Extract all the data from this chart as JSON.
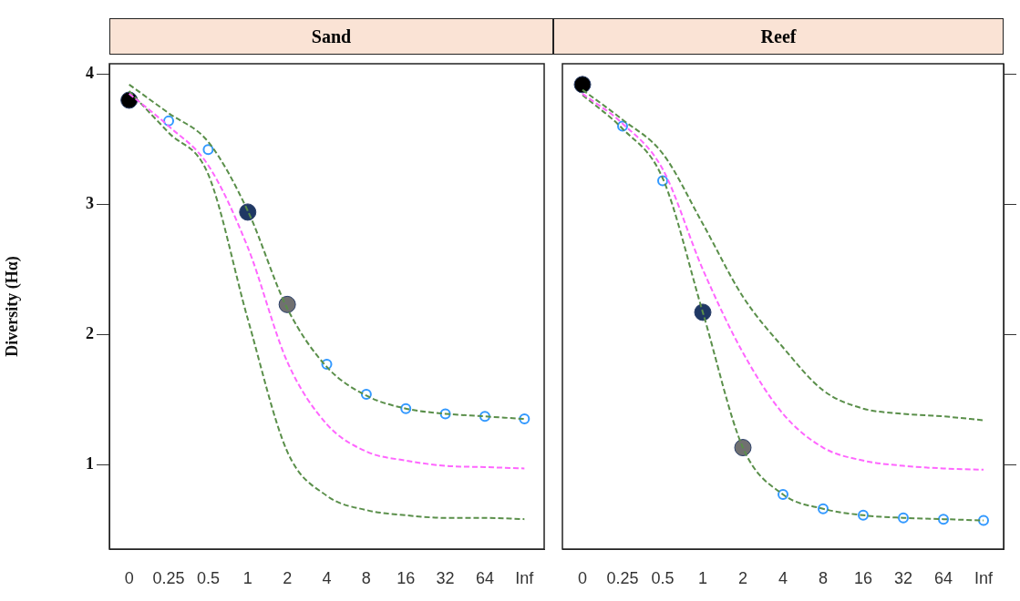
{
  "chart_data": [
    {
      "type": "line",
      "title": "Sand",
      "ylabel": "Diversity (Hα)",
      "categories": [
        "0",
        "0.25",
        "0.5",
        "1",
        "2",
        "4",
        "8",
        "16",
        "32",
        "64",
        "Inf"
      ],
      "ylim": [
        0.35,
        4.08
      ],
      "yticks": [
        1,
        2,
        3,
        4
      ],
      "series": [
        {
          "type": "line",
          "color": "#5a8f4a",
          "line_style": "dashed",
          "marker": "none",
          "values": [
            3.92,
            3.7,
            3.48,
            2.95,
            2.2,
            1.75,
            1.53,
            1.43,
            1.39,
            1.37,
            1.35
          ]
        },
        {
          "type": "line",
          "color": "#ff66ff",
          "line_style": "dashed",
          "marker": "none",
          "values": [
            3.85,
            3.6,
            3.3,
            2.67,
            1.79,
            1.31,
            1.1,
            1.03,
            0.99,
            0.98,
            0.97
          ]
        },
        {
          "type": "line",
          "color": "#5a8f4a",
          "line_style": "dashed",
          "marker": "none",
          "values": [
            3.87,
            3.55,
            3.23,
            2.12,
            1.1,
            0.76,
            0.65,
            0.61,
            0.59,
            0.59,
            0.58
          ]
        },
        {
          "type": "scatter",
          "marker": "circle",
          "colors": [
            "#000000",
            null,
            null,
            "#1f3864",
            "#707070",
            null,
            null,
            null,
            null,
            null,
            null
          ],
          "values": [
            3.8,
            null,
            null,
            2.94,
            2.23,
            null,
            null,
            null,
            null,
            null,
            null
          ]
        },
        {
          "type": "scatter",
          "marker": "circle",
          "color": "#3399ff",
          "values": [
            null,
            3.64,
            3.42,
            null,
            null,
            1.77,
            1.54,
            1.43,
            1.39,
            1.37,
            1.35
          ]
        }
      ]
    },
    {
      "type": "line",
      "title": "Reef",
      "tick_labels": "x",
      "categories": [
        "0",
        "0.25",
        "0.5",
        "1",
        "2",
        "4",
        "8",
        "16",
        "32",
        "64",
        "Inf"
      ],
      "ylim": [
        0.35,
        4.08
      ],
      "yticks": [
        1,
        2,
        3,
        4
      ],
      "series": [
        {
          "type": "line",
          "color": "#5a8f4a",
          "line_style": "dashed",
          "marker": "none",
          "values": [
            3.88,
            3.65,
            3.39,
            2.85,
            2.29,
            1.9,
            1.57,
            1.43,
            1.39,
            1.37,
            1.34
          ]
        },
        {
          "type": "line",
          "color": "#ff66ff",
          "line_style": "dashed",
          "marker": "none",
          "values": [
            3.85,
            3.62,
            3.27,
            2.5,
            1.86,
            1.39,
            1.13,
            1.03,
            0.99,
            0.97,
            0.96
          ]
        },
        {
          "type": "line",
          "color": "#5a8f4a",
          "line_style": "dashed",
          "marker": "none",
          "values": [
            3.84,
            3.58,
            3.2,
            2.17,
            1.13,
            0.77,
            0.66,
            0.61,
            0.59,
            0.58,
            0.57
          ]
        },
        {
          "type": "scatter",
          "marker": "circle",
          "colors": [
            "#000000",
            null,
            null,
            "#1f3864",
            "#707070",
            null,
            null,
            null,
            null,
            null,
            null
          ],
          "values": [
            3.92,
            null,
            null,
            2.17,
            1.13,
            null,
            null,
            null,
            null,
            null,
            null
          ]
        },
        {
          "type": "scatter",
          "marker": "circle",
          "color": "#3399ff",
          "values": [
            null,
            3.6,
            3.18,
            null,
            null,
            0.77,
            0.66,
            0.61,
            0.59,
            0.58,
            0.57
          ]
        }
      ]
    }
  ]
}
